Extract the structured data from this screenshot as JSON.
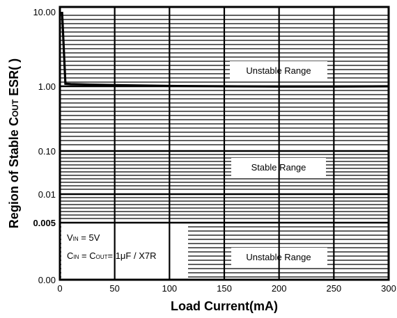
{
  "chart_data": {
    "type": "line",
    "xlabel": "Load Current(mA)",
    "ylabel": {
      "prefix": "Region of Stable C",
      "sub": "OUT",
      "suffix": " ESR(   )"
    },
    "xlim": [
      0,
      300
    ],
    "x_ticks": [
      "0",
      "50",
      "100",
      "150",
      "200",
      "250",
      "300"
    ],
    "y_ticks": [
      {
        "label": "10.00",
        "bold": false
      },
      {
        "label": "1.00",
        "bold": false
      },
      {
        "label": "0.10",
        "bold": false
      },
      {
        "label": "0.01",
        "bold": false
      },
      {
        "label": "0.005",
        "bold": true
      },
      {
        "label": "0.00",
        "bold": false
      }
    ],
    "grid": true,
    "series": [
      {
        "x": [
          2,
          5,
          10,
          30,
          60,
          100,
          150,
          200,
          250,
          300
        ],
        "y": [
          10.0,
          1.08,
          1.07,
          1.05,
          1.03,
          1.01,
          1.0,
          0.99,
          0.99,
          1.0
        ]
      }
    ],
    "regions": [
      {
        "label": "Unstable Range"
      },
      {
        "label": "Stable Range"
      },
      {
        "label": "Unstable Range"
      }
    ],
    "annotations": [
      {
        "pre": "V",
        "sub": "IN",
        "post": " = 5V"
      },
      {
        "pre": "C",
        "sub": "IN",
        "mid": " = C",
        "sub2": "OUT",
        "post": "= 1μF / X7R"
      }
    ]
  }
}
